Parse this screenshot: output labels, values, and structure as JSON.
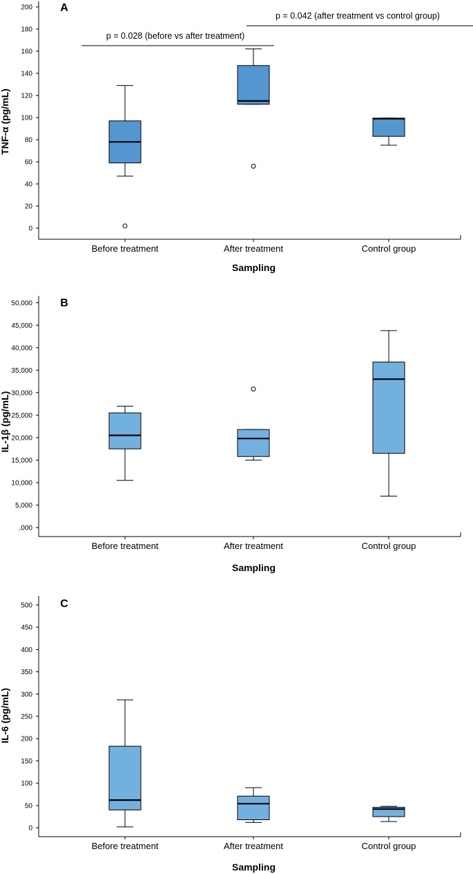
{
  "colors": {
    "box_a": "#5496cf",
    "box_bc": "#72b1df",
    "line": "#000000",
    "outlier_fill": "#ffffff"
  },
  "chart_data": [
    {
      "type": "boxplot",
      "panel_label": "A",
      "ylabel": "TNF-α (pg/mL)",
      "xlabel": "Sampling",
      "ylim": [
        -10,
        205
      ],
      "yticks": [
        0,
        20,
        40,
        60,
        80,
        100,
        120,
        140,
        160,
        180,
        200
      ],
      "ytick_labels": [
        "0",
        "20",
        "40",
        "60",
        "80",
        "100",
        "120",
        "140",
        "160",
        "180",
        "200"
      ],
      "categories": [
        "Before treatment",
        "After treatment",
        "Control group"
      ],
      "boxes": [
        {
          "min": 47,
          "q1": 59,
          "median": 78,
          "q3": 97,
          "max": 129,
          "outliers": [
            2
          ]
        },
        {
          "min": 112,
          "q1": 112,
          "median": 115,
          "q3": 147,
          "max": 162,
          "outliers": [
            56
          ]
        },
        {
          "min": 75,
          "q1": 83,
          "median": 99,
          "q3": 99.5,
          "max": 99.5,
          "outliers": []
        }
      ],
      "annotations": [
        {
          "text": "p = 0.028 (before vs after treatment)",
          "from": 0,
          "to": 1,
          "y": 165
        },
        {
          "text": "p = 0.042 (after treatment vs control group)",
          "from": 1,
          "to": 2,
          "y": 183
        }
      ]
    },
    {
      "type": "boxplot",
      "panel_label": "B",
      "ylabel": "IL-1β (pg/mL)",
      "xlabel": "Sampling",
      "ylim": [
        -2000,
        51500
      ],
      "yticks": [
        0,
        5000,
        10000,
        15000,
        20000,
        25000,
        30000,
        35000,
        40000,
        45000,
        50000
      ],
      "ytick_labels": [
        ",000",
        "5,000",
        "10,000",
        "15,000",
        "20,000",
        "25,000",
        "30,000",
        "35,000",
        "40,000",
        "45,000",
        "50,000"
      ],
      "categories": [
        "Before treatment",
        "After treatment",
        "Control group"
      ],
      "boxes": [
        {
          "min": 10500,
          "q1": 17500,
          "median": 20500,
          "q3": 25500,
          "max": 27000,
          "outliers": []
        },
        {
          "min": 15000,
          "q1": 15800,
          "median": 19800,
          "q3": 21800,
          "max": 21800,
          "outliers": [
            30800
          ]
        },
        {
          "min": 7000,
          "q1": 16500,
          "median": 33000,
          "q3": 36800,
          "max": 43800,
          "outliers": []
        }
      ],
      "annotations": []
    },
    {
      "type": "boxplot",
      "panel_label": "C",
      "ylabel": "IL-6 (pg/mL)",
      "xlabel": "Sampling",
      "ylim": [
        -20,
        520
      ],
      "yticks": [
        0,
        50,
        100,
        150,
        200,
        250,
        300,
        350,
        400,
        450,
        500
      ],
      "ytick_labels": [
        "0",
        "50",
        "100",
        "150",
        "200",
        "250",
        "300",
        "350",
        "400",
        "450",
        "500"
      ],
      "categories": [
        "Before treatment",
        "After treatment",
        "Control group"
      ],
      "boxes": [
        {
          "min": 2,
          "q1": 40,
          "median": 62,
          "q3": 183,
          "max": 287,
          "outliers": []
        },
        {
          "min": 12,
          "q1": 18,
          "median": 54,
          "q3": 71,
          "max": 90,
          "outliers": []
        },
        {
          "min": 14,
          "q1": 25,
          "median": 42,
          "q3": 46,
          "max": 48,
          "outliers": []
        }
      ],
      "annotations": []
    }
  ]
}
